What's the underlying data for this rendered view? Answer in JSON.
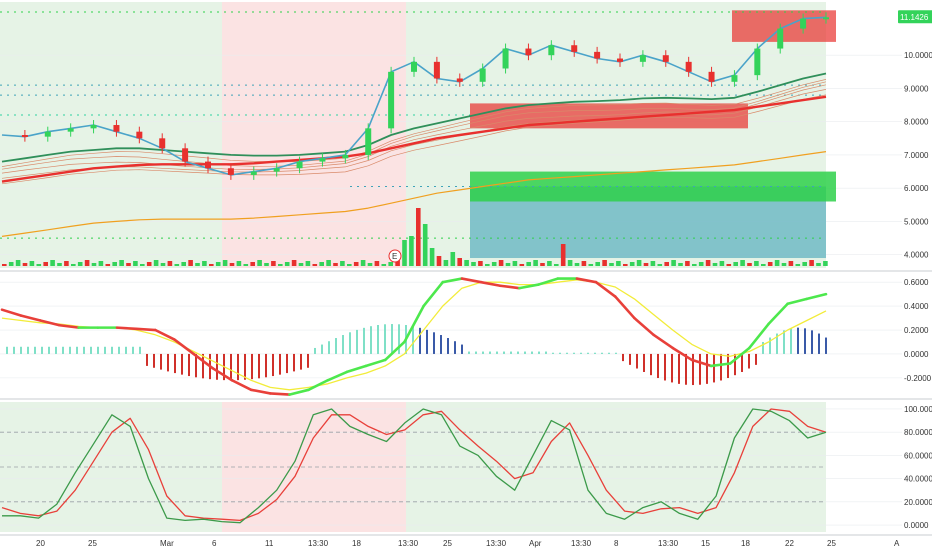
{
  "colors": {
    "up": "#33d35a",
    "down": "#e8302e",
    "bg_green": "#e6f3e6",
    "bg_red": "#fbe3e3",
    "grid": "#e9ecef",
    "axis_text": "#333333",
    "price_badge": "#33d35a",
    "ma_thick": "#e8302e",
    "ma_green": "#2f8f5a",
    "ma_blue": "#4aa3c9",
    "signal": "#f2ec3a",
    "macd_up": "#4de84d",
    "macd_down": "#e8403a",
    "stoch_k": "#3c9a4a",
    "stoch_d": "#e8403a",
    "hist_teal": "#7fe0c7",
    "hist_blue": "#3a5aa8",
    "hist_red": "#d0302a"
  },
  "x_axis": {
    "ticks": [
      "20",
      "25",
      "Mar",
      "6",
      "11",
      "13:30",
      "18",
      "13:30",
      "25",
      "13:30",
      "Apr",
      "13:30",
      "8",
      "13:30",
      "15",
      "18",
      "22",
      "25",
      "A"
    ]
  },
  "chart_data": [
    {
      "type": "line",
      "panel": "price",
      "ylim": [
        3.6,
        11.6
      ],
      "y_ticks": [
        "11.1426",
        "10.0000",
        "9.0000",
        "8.0000",
        "7.0000",
        "6.0000",
        "5.0000",
        "4.0000"
      ],
      "last_price": "11.1426",
      "series": [
        {
          "values": [
            7.6,
            7.55,
            7.7,
            7.8,
            7.9,
            7.7,
            7.5,
            7.2,
            6.8,
            6.6,
            6.4,
            6.5,
            6.6,
            6.8,
            6.9,
            7.0,
            7.8,
            9.5,
            9.8,
            9.3,
            9.2,
            9.6,
            10.2,
            10.0,
            10.3,
            10.1,
            9.9,
            9.8,
            10.0,
            9.8,
            9.5,
            9.2,
            9.4,
            10.2,
            10.8,
            11.1,
            11.14
          ]
        },
        {
          "values": [
            6.8,
            6.9,
            7.0,
            7.1,
            7.15,
            7.2,
            7.2,
            7.15,
            7.1,
            7.05,
            7.0,
            6.98,
            6.98,
            7.0,
            7.05,
            7.1,
            7.3,
            7.6,
            7.8,
            7.95,
            8.1,
            8.25,
            8.4,
            8.5,
            8.55,
            8.6,
            8.62,
            8.65,
            8.7,
            8.72,
            8.7,
            8.68,
            8.72,
            8.9,
            9.1,
            9.3,
            9.45
          ]
        },
        {
          "values": [
            6.2,
            6.3,
            6.4,
            6.5,
            6.6,
            6.65,
            6.7,
            6.72,
            6.72,
            6.72,
            6.72,
            6.75,
            6.8,
            6.85,
            6.9,
            6.95,
            7.05,
            7.2,
            7.35,
            7.5,
            7.6,
            7.7,
            7.8,
            7.9,
            7.95,
            8.0,
            8.05,
            8.1,
            8.15,
            8.2,
            8.25,
            8.3,
            8.35,
            8.45,
            8.55,
            8.65,
            8.75
          ]
        }
      ]
    },
    {
      "type": "line",
      "panel": "macd",
      "ylim": [
        -0.36,
        0.66
      ],
      "y_ticks": [
        "0.6000",
        "0.4000",
        "0.2000",
        "0.0000",
        "-0.2000"
      ],
      "series": [
        {
          "values": [
            0.37,
            0.32,
            0.28,
            0.24,
            0.22,
            0.22,
            0.22,
            0.21,
            0.2,
            0.12,
            0.0,
            -0.12,
            -0.22,
            -0.3,
            -0.33,
            -0.34,
            -0.3,
            -0.22,
            -0.15,
            -0.1,
            -0.05,
            0.1,
            0.4,
            0.6,
            0.63,
            0.6,
            0.57,
            0.55,
            0.58,
            0.63,
            0.63,
            0.6,
            0.48,
            0.3,
            0.16,
            0.05,
            -0.05,
            -0.1,
            -0.08,
            0.05,
            0.25,
            0.42,
            0.46,
            0.5
          ]
        },
        {
          "values": [
            0.3,
            0.28,
            0.26,
            0.25,
            0.23,
            0.22,
            0.22,
            0.2,
            0.16,
            0.1,
            0.02,
            -0.06,
            -0.14,
            -0.22,
            -0.28,
            -0.3,
            -0.28,
            -0.25,
            -0.2,
            -0.16,
            -0.1,
            0.0,
            0.2,
            0.4,
            0.55,
            0.6,
            0.6,
            0.58,
            0.58,
            0.6,
            0.62,
            0.6,
            0.56,
            0.46,
            0.33,
            0.2,
            0.08,
            0.0,
            -0.02,
            0.02,
            0.1,
            0.2,
            0.28,
            0.36
          ]
        }
      ]
    },
    {
      "type": "line",
      "panel": "stochastic",
      "ylim": [
        -6,
        106
      ],
      "y_ticks": [
        "100.0000",
        "80.0000",
        "60.0000",
        "40.0000",
        "20.0000",
        "0.0000"
      ],
      "series": [
        {
          "values": [
            8,
            8,
            6,
            18,
            45,
            70,
            95,
            85,
            40,
            6,
            4,
            5,
            3,
            2,
            15,
            30,
            55,
            95,
            100,
            85,
            78,
            72,
            88,
            100,
            95,
            68,
            60,
            42,
            30,
            60,
            90,
            82,
            30,
            10,
            5,
            15,
            20,
            10,
            5,
            25,
            75,
            100,
            98,
            90,
            75,
            80
          ]
        },
        {
          "values": [
            15,
            10,
            8,
            12,
            30,
            55,
            80,
            92,
            65,
            25,
            8,
            6,
            5,
            4,
            10,
            22,
            42,
            75,
            95,
            95,
            85,
            78,
            82,
            95,
            98,
            82,
            68,
            55,
            40,
            45,
            72,
            88,
            60,
            30,
            12,
            10,
            14,
            15,
            10,
            15,
            45,
            85,
            100,
            98,
            85,
            80
          ]
        }
      ]
    }
  ]
}
